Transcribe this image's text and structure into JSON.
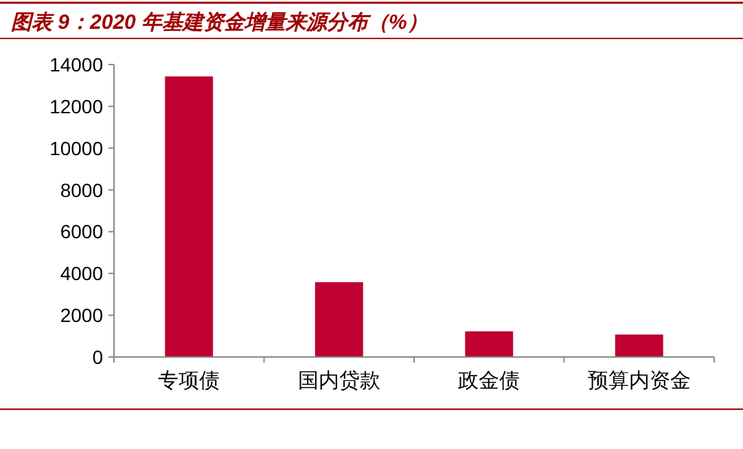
{
  "chart_data": {
    "type": "bar",
    "title": "图表 9：2020 年基建资金增量来源分布（%）",
    "categories": [
      "专项债",
      "国内贷款",
      "政金债",
      "预算内资金"
    ],
    "values": [
      13430,
      3580,
      1230,
      1075
    ],
    "color": "#c0002f",
    "ylim": [
      0,
      14000
    ],
    "yticks": [
      0,
      2000,
      4000,
      6000,
      8000,
      10000,
      12000,
      14000
    ],
    "grid": false
  }
}
